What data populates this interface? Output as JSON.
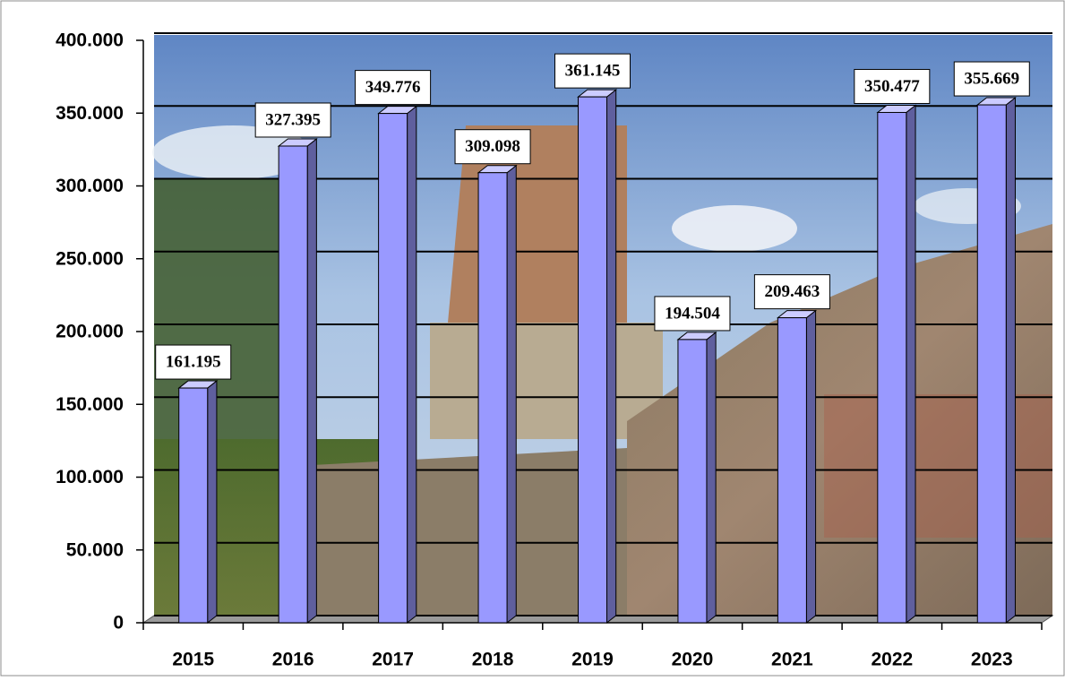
{
  "chart_data": {
    "type": "bar",
    "categories": [
      "2015",
      "2016",
      "2017",
      "2018",
      "2019",
      "2020",
      "2021",
      "2022",
      "2023"
    ],
    "values": [
      161195,
      327395,
      349776,
      309098,
      361145,
      194504,
      209463,
      350477,
      355669
    ],
    "value_labels": [
      "161.195",
      "327.395",
      "349.776",
      "309.098",
      "361.145",
      "194.504",
      "209.463",
      "350.477",
      "355.669"
    ],
    "color": "#9999ff",
    "ylim": [
      0,
      400000
    ],
    "yticks": [
      0,
      {
        "value": 50000,
        "label": "50.000"
      },
      {
        "value": 100000,
        "label": "100.000"
      },
      {
        "value": 150000,
        "label": "150.000"
      },
      {
        "value": 200000,
        "label": "200.000"
      },
      {
        "value": 250000,
        "label": "250.000"
      },
      {
        "value": 300000,
        "label": "300.000"
      },
      {
        "value": 350000,
        "label": "350.000"
      },
      {
        "value": 400000,
        "label": "400.000"
      }
    ],
    "grid": true
  }
}
